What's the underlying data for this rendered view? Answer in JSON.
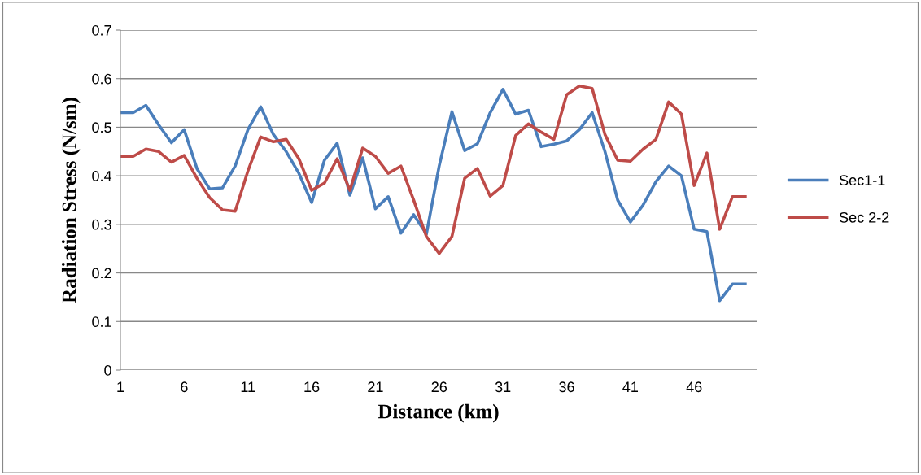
{
  "chart_data": {
    "type": "line",
    "xlabel": "Distance (km)",
    "ylabel": "Radiation Stress (N/sm)",
    "categories": [
      "1",
      null,
      null,
      null,
      null,
      "6",
      null,
      null,
      null,
      null,
      "11",
      null,
      null,
      null,
      null,
      "16",
      null,
      null,
      null,
      null,
      "21",
      null,
      null,
      null,
      null,
      "26",
      null,
      null,
      null,
      null,
      "31",
      null,
      null,
      null,
      null,
      "36",
      null,
      null,
      null,
      null,
      "41",
      null,
      null,
      null,
      null,
      "46",
      null,
      null,
      null,
      null
    ],
    "series": [
      {
        "name": "Sec1-1",
        "color": "#4a7ebb",
        "values": [
          0.53,
          0.53,
          0.545,
          0.505,
          0.468,
          0.495,
          0.415,
          0.373,
          0.375,
          0.42,
          0.495,
          0.542,
          0.485,
          0.45,
          0.405,
          0.345,
          0.432,
          0.467,
          0.36,
          0.437,
          0.332,
          0.357,
          0.282,
          0.32,
          0.28,
          0.42,
          0.532,
          0.452,
          0.466,
          0.53,
          0.578,
          0.527,
          0.535,
          0.46,
          0.465,
          0.472,
          0.495,
          0.53,
          0.45,
          0.35,
          0.305,
          0.34,
          0.388,
          0.42,
          0.4,
          0.29,
          0.285,
          0.143,
          0.177,
          0.177
        ]
      },
      {
        "name": "Sec 2-2",
        "color": "#be4b48",
        "values": [
          0.44,
          0.44,
          0.455,
          0.45,
          0.428,
          0.442,
          0.395,
          0.355,
          0.33,
          0.327,
          0.41,
          0.48,
          0.47,
          0.475,
          0.435,
          0.37,
          0.385,
          0.435,
          0.37,
          0.457,
          0.44,
          0.405,
          0.42,
          0.35,
          0.275,
          0.24,
          0.275,
          0.395,
          0.415,
          0.358,
          0.38,
          0.483,
          0.507,
          0.49,
          0.475,
          0.567,
          0.585,
          0.58,
          0.485,
          0.432,
          0.43,
          0.455,
          0.475,
          0.552,
          0.527,
          0.38,
          0.447,
          0.29,
          0.357,
          0.357
        ]
      }
    ],
    "ylim": [
      0,
      0.7
    ],
    "yticks": [
      {
        "value": 0,
        "label": "0"
      },
      0.1,
      0.2,
      0.3,
      0.4,
      0.5,
      0.6,
      0.7
    ],
    "grid": "y",
    "legend": "right",
    "marker": "none",
    "line_style": "solid"
  }
}
